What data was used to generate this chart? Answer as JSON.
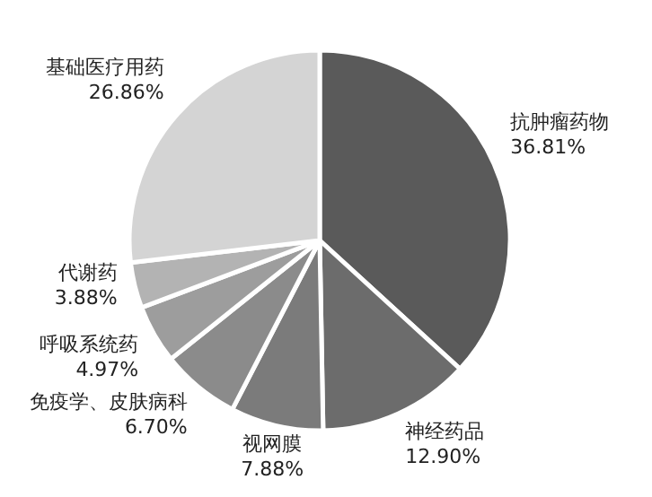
{
  "chart_data": {
    "type": "pie",
    "categories": [
      "抗肿瘤药物",
      "神经药品",
      "视网膜",
      "免疫学、皮肤病科",
      "呼吸系统药",
      "代谢药",
      "基础医疗用药"
    ],
    "values": [
      36.81,
      12.9,
      7.88,
      6.7,
      4.97,
      3.88,
      26.86
    ],
    "value_labels": [
      "36.81%",
      "12.90%",
      "7.88%",
      "6.70%",
      "4.97%",
      "3.88%",
      "26.86%"
    ],
    "colors": [
      "#5a5a5a",
      "#6c6c6c",
      "#7b7b7b",
      "#8b8b8b",
      "#9d9d9d",
      "#b3b3b3",
      "#d4d4d4"
    ]
  }
}
